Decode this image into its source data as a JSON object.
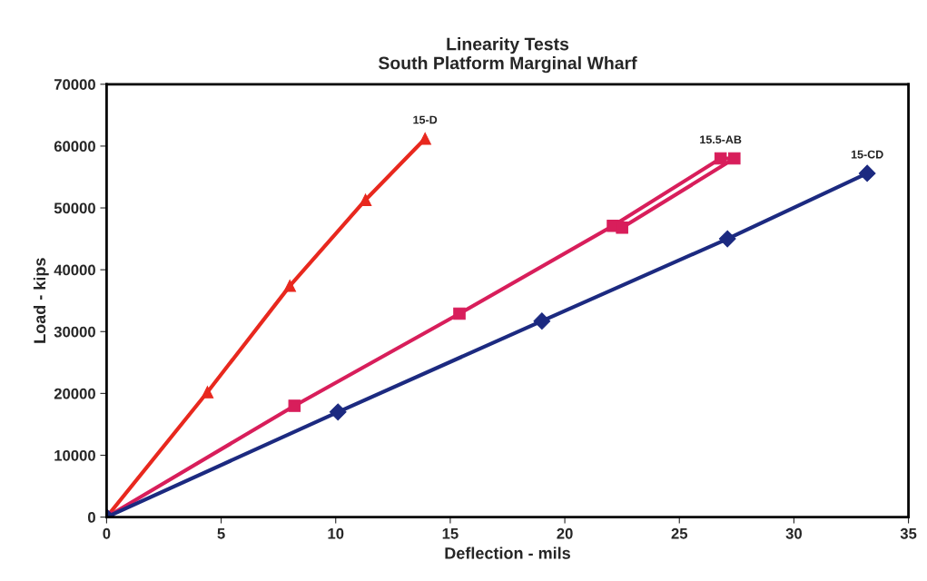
{
  "chart_data": {
    "type": "line",
    "title": "Linearity Tests\nSouth Platform Marginal Wharf",
    "xlabel": "Deflection - mils",
    "ylabel": "Load - kips",
    "xlim": [
      0,
      35
    ],
    "xticks": [
      0,
      5,
      10,
      15,
      20,
      25,
      30,
      35
    ],
    "ylim": [
      0,
      70000
    ],
    "yticks": [
      0,
      10000,
      20000,
      30000,
      40000,
      50000,
      60000,
      70000
    ],
    "grid": false,
    "legend": false,
    "series": [
      {
        "name": "15-D",
        "color": "#e8281e",
        "marker": "triangle",
        "x": [
          0,
          4.4,
          8.0,
          11.3,
          13.9
        ],
        "values": [
          0,
          20200,
          37400,
          51300,
          61200
        ]
      },
      {
        "name": "15.5-AB",
        "color": "#d81e5b",
        "marker": "square",
        "x": [
          0,
          8.2,
          15.4,
          22.1,
          26.8,
          27.4,
          22.5
        ],
        "values": [
          0,
          18000,
          32900,
          47100,
          58000,
          58000,
          46800
        ]
      },
      {
        "name": "15-CD",
        "color": "#1c2a80",
        "marker": "diamond",
        "x": [
          0,
          10.1,
          19.0,
          27.1,
          33.2
        ],
        "values": [
          0,
          17000,
          31700,
          45000,
          55600
        ]
      }
    ]
  }
}
